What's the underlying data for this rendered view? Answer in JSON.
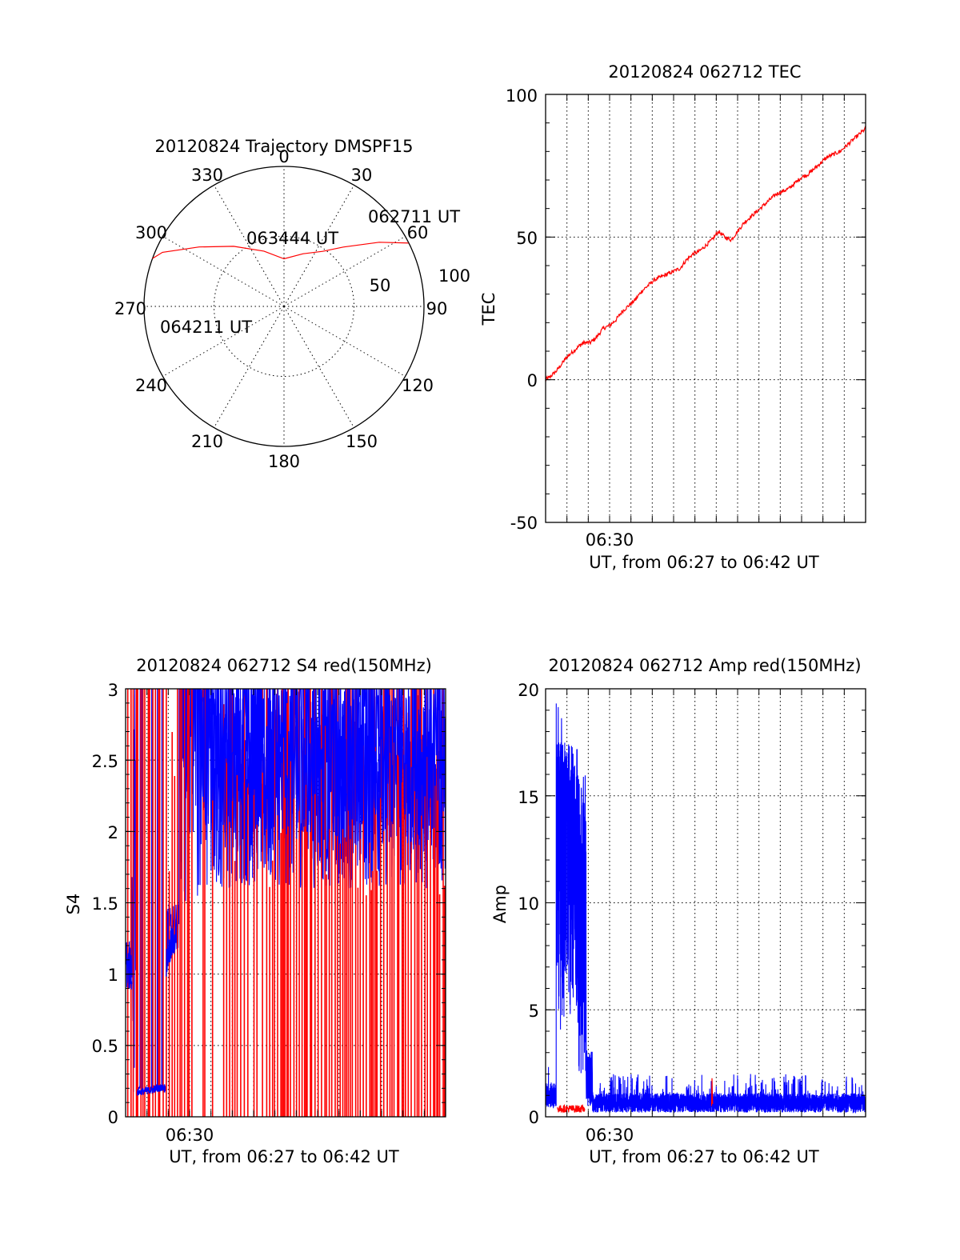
{
  "chart_data": [
    {
      "type": "polar-trajectory",
      "title": "20120824 Trajectory DMSPF15",
      "azimuth_labels": [
        "0",
        "30",
        "60",
        "90",
        "120",
        "150",
        "180",
        "210",
        "240",
        "270",
        "300",
        "330"
      ],
      "elevation_ring_labels": [
        "50",
        "100"
      ],
      "start_label": "062711 UT",
      "mid_label": "063444 UT",
      "end_label": "064211 UT",
      "color": "#ff0000",
      "note_units": "points are [azimuth_deg, zenith_fraction 0-1]",
      "points": [
        [
          63,
          0.997
        ],
        [
          56,
          0.82
        ],
        [
          45,
          0.6
        ],
        [
          35,
          0.48
        ],
        [
          20,
          0.4
        ],
        [
          0,
          0.34
        ],
        [
          -20,
          0.42
        ],
        [
          -40,
          0.56
        ],
        [
          -55,
          0.74
        ],
        [
          -66,
          0.95
        ],
        [
          -70,
          1.0
        ]
      ]
    },
    {
      "type": "line",
      "title": "20120824 062712 TEC",
      "xlabel": "UT, from 06:27 to 06:42 UT",
      "ylabel": "TEC",
      "x_tick_labels": [
        "06:30"
      ],
      "y_tick_labels": [
        "100",
        "50",
        "0",
        "-50"
      ],
      "xlim_minutes": [
        27,
        42
      ],
      "ylim": [
        -50,
        100
      ],
      "color": "#ff0000",
      "x": [
        27.0,
        27.2,
        27.5,
        27.8,
        28.0,
        28.3,
        28.6,
        28.8,
        29.1,
        29.4,
        29.7,
        30.0,
        30.3,
        30.6,
        30.9,
        31.2,
        31.5,
        31.8,
        32.1,
        32.4,
        32.7,
        33.0,
        33.3,
        33.6,
        33.9,
        34.2,
        34.5,
        34.8,
        35.1,
        35.4,
        35.7,
        36.0,
        36.3,
        36.6,
        36.9,
        37.2,
        37.5,
        37.8,
        38.1,
        38.4,
        38.7,
        39.0,
        39.3,
        39.6,
        39.9,
        40.2,
        40.5,
        40.8,
        41.1,
        41.4,
        41.7,
        42.0
      ],
      "values": [
        0,
        1,
        3,
        6,
        8,
        10,
        12,
        13,
        13,
        15,
        18,
        19,
        21,
        24,
        26,
        28,
        31,
        33,
        35,
        36,
        37,
        38,
        39,
        42,
        44,
        45,
        47,
        49,
        52,
        50,
        49,
        52,
        55,
        57,
        59,
        61,
        63,
        65,
        66,
        67,
        69,
        71,
        72,
        74,
        76,
        78,
        79,
        80,
        82,
        84,
        86,
        88
      ]
    },
    {
      "type": "line",
      "title": "20120824 062712 S4 red(150MHz)",
      "xlabel": "UT, from 06:27 to 06:42 UT",
      "ylabel": "S4",
      "x_tick_labels": [
        "06:30"
      ],
      "y_tick_labels": [
        "3",
        "2.5",
        "2",
        "1.5",
        "1",
        "0.5",
        "0"
      ],
      "xlim_minutes": [
        27,
        42
      ],
      "ylim": [
        0,
        3
      ],
      "series": [
        {
          "name": "",
          "color": "#ff0000",
          "pattern": "dense vertical spikes from 0 to above 3 across full interval"
        },
        {
          "name": "",
          "color": "#0000ff",
          "pattern": "low values 0.2-1.2 before 06:29, then dense oscillation 1-3 after 06:30"
        }
      ]
    },
    {
      "type": "line",
      "title": "20120824 062712 Amp red(150MHz)",
      "xlabel": "UT, from 06:27 to 06:42 UT",
      "ylabel": "Amp",
      "x_tick_labels": [
        "06:30"
      ],
      "y_tick_labels": [
        "20",
        "15",
        "10",
        "5",
        "0"
      ],
      "xlim_minutes": [
        27,
        42
      ],
      "ylim": [
        0,
        20
      ],
      "series": [
        {
          "name": "",
          "color": "#0000ff",
          "pattern": "~1 at start, bursts up to ~18 between 06:27.5 and 06:28.9, then ~0.5-2 afterwards"
        },
        {
          "name": "",
          "color": "#ff0000",
          "pattern": "~0.3 between 06:27.5 and 06:28.9, small spike ~1.8 near 06:35"
        }
      ]
    }
  ]
}
